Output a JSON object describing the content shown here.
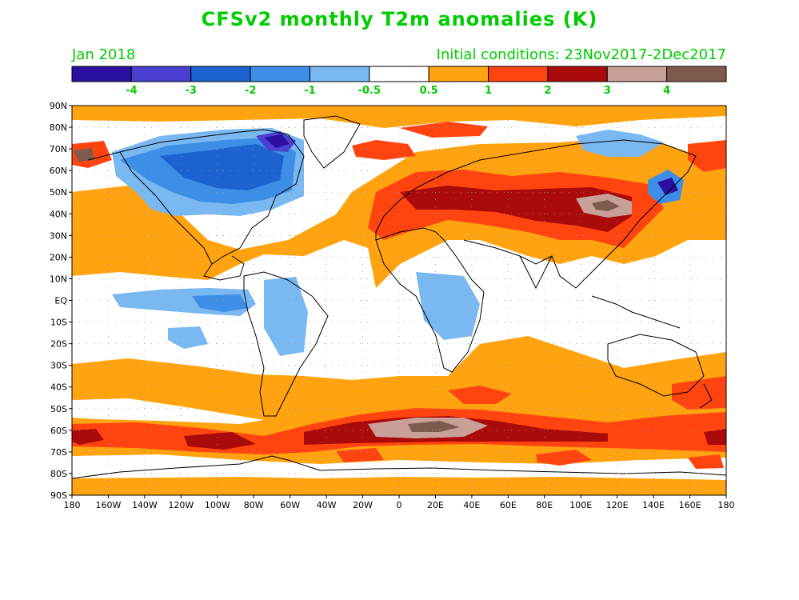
{
  "title": "CFSv2 monthly T2m anomalies (K)",
  "subtitle_left": "Jan 2018",
  "subtitle_right": "Initial conditions: 23Nov2017-2Dec2017",
  "colorbar": {
    "colors": [
      "#2a0fa0",
      "#4a3fd0",
      "#1c63d0",
      "#3d8ee6",
      "#7ab8f2",
      "#ffffff",
      "#ffa310",
      "#ff4410",
      "#aa0a0a",
      "#c8a098",
      "#7e5a4e"
    ],
    "labels": [
      "-4",
      "-3",
      "-2",
      "-1",
      "-0.5",
      "0.5",
      "1",
      "2",
      "3",
      "4"
    ]
  },
  "lat_labels": [
    "90N",
    "80N",
    "70N",
    "60N",
    "50N",
    "40N",
    "30N",
    "20N",
    "10N",
    "EQ",
    "10S",
    "20S",
    "30S",
    "40S",
    "50S",
    "60S",
    "70S",
    "80S",
    "90S"
  ],
  "lon_labels": [
    "180",
    "160W",
    "140W",
    "120W",
    "100W",
    "80W",
    "60W",
    "40W",
    "20W",
    "0",
    "20E",
    "40E",
    "60E",
    "80E",
    "100E",
    "120E",
    "140E",
    "160E",
    "180"
  ],
  "map": {
    "type": "filled-contour",
    "variable": "T2m anomaly",
    "units": "K",
    "lon_range": [
      -180,
      180
    ],
    "lat_range": [
      -90,
      90
    ],
    "features": [
      {
        "name": "North America cold anomaly",
        "level": "-2 to -3, core below -4 near Hudson Bay"
      },
      {
        "name": "Eurasia warm anomaly",
        "level": "1 to 3, core above 3 over Mongolia"
      },
      {
        "name": "Southern Ocean warm band",
        "level": "1 to 4 near 60S"
      },
      {
        "name": "Tropical Pacific cool band",
        "level": "-0.5 to -1"
      },
      {
        "name": "Kamchatka cold anomaly",
        "level": "-2 to -4"
      }
    ]
  }
}
